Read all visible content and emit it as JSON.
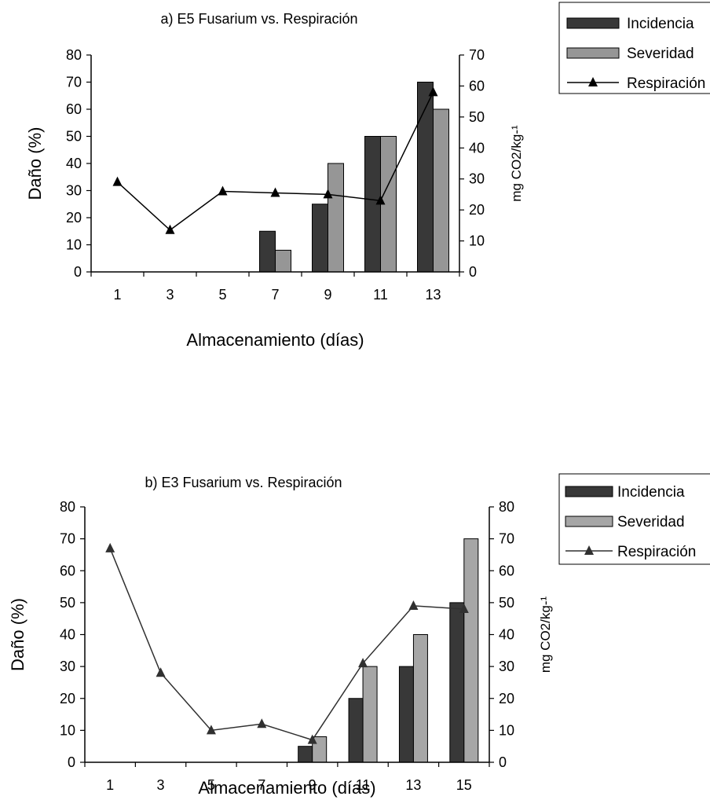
{
  "chart_data": [
    {
      "type": "bar",
      "title": "a) E5  Fusarium vs. Respiración",
      "xlabel": "Almacenamiento (días)",
      "ylabel": "Daño (%)",
      "y2label": "mg CO2/kg-¹",
      "categories": [
        "1",
        "3",
        "5",
        "7",
        "9",
        "11",
        "13"
      ],
      "ylim": [
        0,
        80
      ],
      "yticks": [
        0,
        10,
        20,
        30,
        40,
        50,
        60,
        70,
        80
      ],
      "y2lim": [
        0,
        70
      ],
      "y2ticks": [
        0,
        10,
        20,
        30,
        40,
        50,
        60,
        70
      ],
      "legend_position": "top-right",
      "series": [
        {
          "name": "Incidencia",
          "kind": "bar",
          "axis": "left",
          "color": "#383838",
          "values": [
            0,
            0,
            0,
            15,
            25,
            50,
            70
          ]
        },
        {
          "name": "Severidad",
          "kind": "bar",
          "axis": "left",
          "color": "#969696",
          "values": [
            0,
            0,
            0,
            8,
            40,
            50,
            60
          ]
        },
        {
          "name": "Respiración",
          "kind": "line",
          "axis": "right",
          "color": "#000000",
          "values": [
            29,
            13.5,
            26,
            25.5,
            25,
            23,
            58
          ]
        }
      ]
    },
    {
      "type": "bar",
      "title": "b) E3 Fusarium vs. Respiración",
      "xlabel": "Almacenamiento (días)",
      "ylabel": "Daño (%)",
      "y2label": "mg CO2/kg-¹",
      "categories": [
        "1",
        "3",
        "5",
        "7",
        "9",
        "11",
        "13",
        "15"
      ],
      "ylim": [
        0,
        80
      ],
      "yticks": [
        0,
        10,
        20,
        30,
        40,
        50,
        60,
        70,
        80
      ],
      "y2lim": [
        0,
        80
      ],
      "y2ticks": [
        0,
        10,
        20,
        30,
        40,
        50,
        60,
        70,
        80
      ],
      "legend_position": "top-right",
      "series": [
        {
          "name": "Incidencia",
          "kind": "bar",
          "axis": "left",
          "color": "#383838",
          "values": [
            0,
            0,
            0,
            0,
            5,
            20,
            30,
            50
          ]
        },
        {
          "name": "Severidad",
          "kind": "bar",
          "axis": "left",
          "color": "#a6a6a6",
          "values": [
            0,
            0,
            0,
            0,
            8,
            30,
            40,
            70
          ]
        },
        {
          "name": "Respiración",
          "kind": "line",
          "axis": "right",
          "color": "#303030",
          "values": [
            67,
            28,
            10,
            12,
            7,
            31,
            49,
            48
          ]
        }
      ]
    }
  ]
}
